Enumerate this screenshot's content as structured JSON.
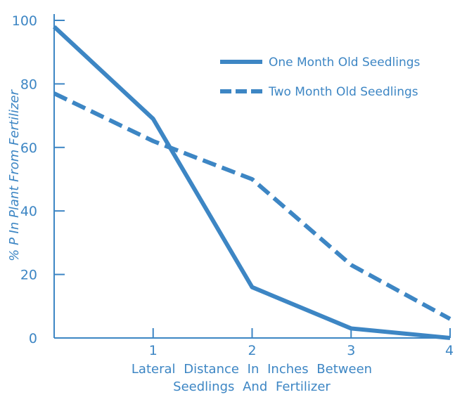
{
  "chart_data": {
    "type": "line",
    "title": "",
    "xlabel_lines": [
      "Lateral Distance In Inches Between",
      "Seedlings And Fertilizer"
    ],
    "ylabel": "% P In Plant From Fertilizer",
    "xlim": [
      0,
      4
    ],
    "ylim": [
      0,
      100
    ],
    "xticks": [
      1,
      2,
      3,
      4
    ],
    "yticks": [
      0,
      20,
      40,
      60,
      80,
      100
    ],
    "grid": false,
    "legend_position": "top-right",
    "color": "#3d86c4",
    "series": [
      {
        "name": "One Month Old Seedlings",
        "style": "solid",
        "x": [
          0,
          1,
          2,
          3,
          4
        ],
        "y": [
          98,
          69,
          16,
          3,
          0
        ]
      },
      {
        "name": "Two Month Old Seedlings",
        "style": "dashed",
        "x": [
          0,
          1,
          2,
          3,
          4
        ],
        "y": [
          77,
          62,
          50,
          23,
          6
        ]
      }
    ]
  }
}
